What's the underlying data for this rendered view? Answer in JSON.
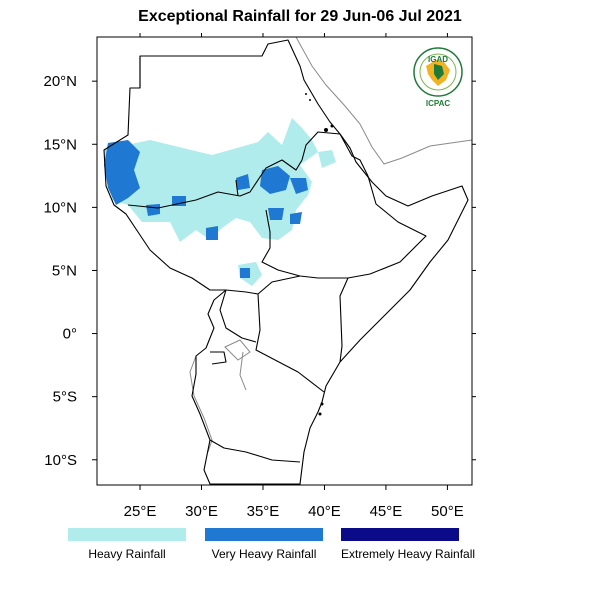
{
  "title": "Exceptional Rainfall for 29 Jun-06 Jul 2021",
  "logo": {
    "top_text": "IGAD",
    "bottom_text": "ICPAC",
    "color": "#1f7a3a"
  },
  "map": {
    "lon_range": [
      21.5,
      52.0
    ],
    "lat_range": [
      -12.0,
      23.5
    ],
    "lon_ticks": [
      {
        "value": 25,
        "label": "25°E"
      },
      {
        "value": 30,
        "label": "30°E"
      },
      {
        "value": 35,
        "label": "35°E"
      },
      {
        "value": 40,
        "label": "40°E"
      },
      {
        "value": 45,
        "label": "45°E"
      },
      {
        "value": 50,
        "label": "50°E"
      }
    ],
    "lat_ticks": [
      {
        "value": 20,
        "label": "20°N"
      },
      {
        "value": 15,
        "label": "15°N"
      },
      {
        "value": 10,
        "label": "10°N"
      },
      {
        "value": 5,
        "label": "5°N"
      },
      {
        "value": 0,
        "label": "0°"
      },
      {
        "value": -5,
        "label": "5°S"
      },
      {
        "value": -10,
        "label": "10°S"
      }
    ]
  },
  "categories": [
    {
      "name": "Heavy Rainfall",
      "color": "#b0ecec"
    },
    {
      "name": "Very Heavy Rainfall",
      "color": "#1f78d1"
    },
    {
      "name": "Extremely Heavy Rainfall",
      "color": "#0b0b8a"
    }
  ]
}
